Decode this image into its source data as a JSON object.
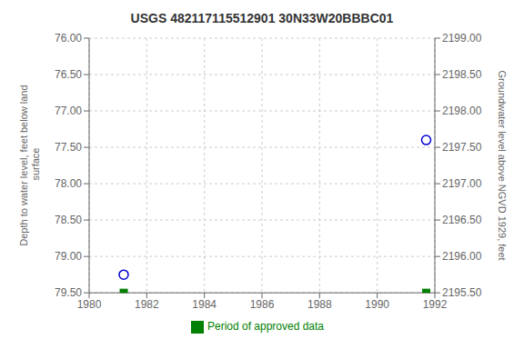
{
  "chart_data": {
    "type": "scatter",
    "title": "USGS 482117115512901 30N33W20BBBC01",
    "ylabel": "Depth to water level, feet below land\n surface",
    "y2label": "Groundwater level above NGVD 1929, feet",
    "xlim": [
      1980,
      1992
    ],
    "xticks": [
      1980,
      1982,
      1984,
      1986,
      1988,
      1990,
      1992
    ],
    "ylim": [
      79.5,
      76.0
    ],
    "yticks": [
      {
        "value": 76.0,
        "label": "76.00"
      },
      {
        "value": 76.5,
        "label": "76.50"
      },
      {
        "value": 77.0,
        "label": "77.00"
      },
      {
        "value": 77.5,
        "label": "77.50"
      },
      {
        "value": 78.0,
        "label": "78.00"
      },
      {
        "value": 78.5,
        "label": "78.50"
      },
      {
        "value": 79.0,
        "label": "79.00"
      },
      {
        "value": 79.5,
        "label": "79.50"
      }
    ],
    "y2lim": [
      2195.5,
      2199.0
    ],
    "y2ticks": [
      {
        "value": 2195.5,
        "label": "2195.50"
      },
      {
        "value": 2196.0,
        "label": "2196.00"
      },
      {
        "value": 2196.5,
        "label": "2196.50"
      },
      {
        "value": 2197.0,
        "label": "2197.00"
      },
      {
        "value": 2197.5,
        "label": "2197.50"
      },
      {
        "value": 2198.0,
        "label": "2198.00"
      },
      {
        "value": 2198.5,
        "label": "2198.50"
      },
      {
        "value": 2199.0,
        "label": "2199.00"
      }
    ],
    "grid": true,
    "legend": "bottom",
    "series": [
      {
        "color": "#0000cc",
        "marker": "circle",
        "x": [
          1981.2,
          1991.7
        ],
        "values": [
          79.25,
          77.4
        ]
      },
      {
        "name": "Period of approved data",
        "color": "#008000",
        "marker": "square",
        "x": [
          1981.2,
          1991.7
        ],
        "values": [
          79.5,
          79.5
        ]
      }
    ]
  }
}
